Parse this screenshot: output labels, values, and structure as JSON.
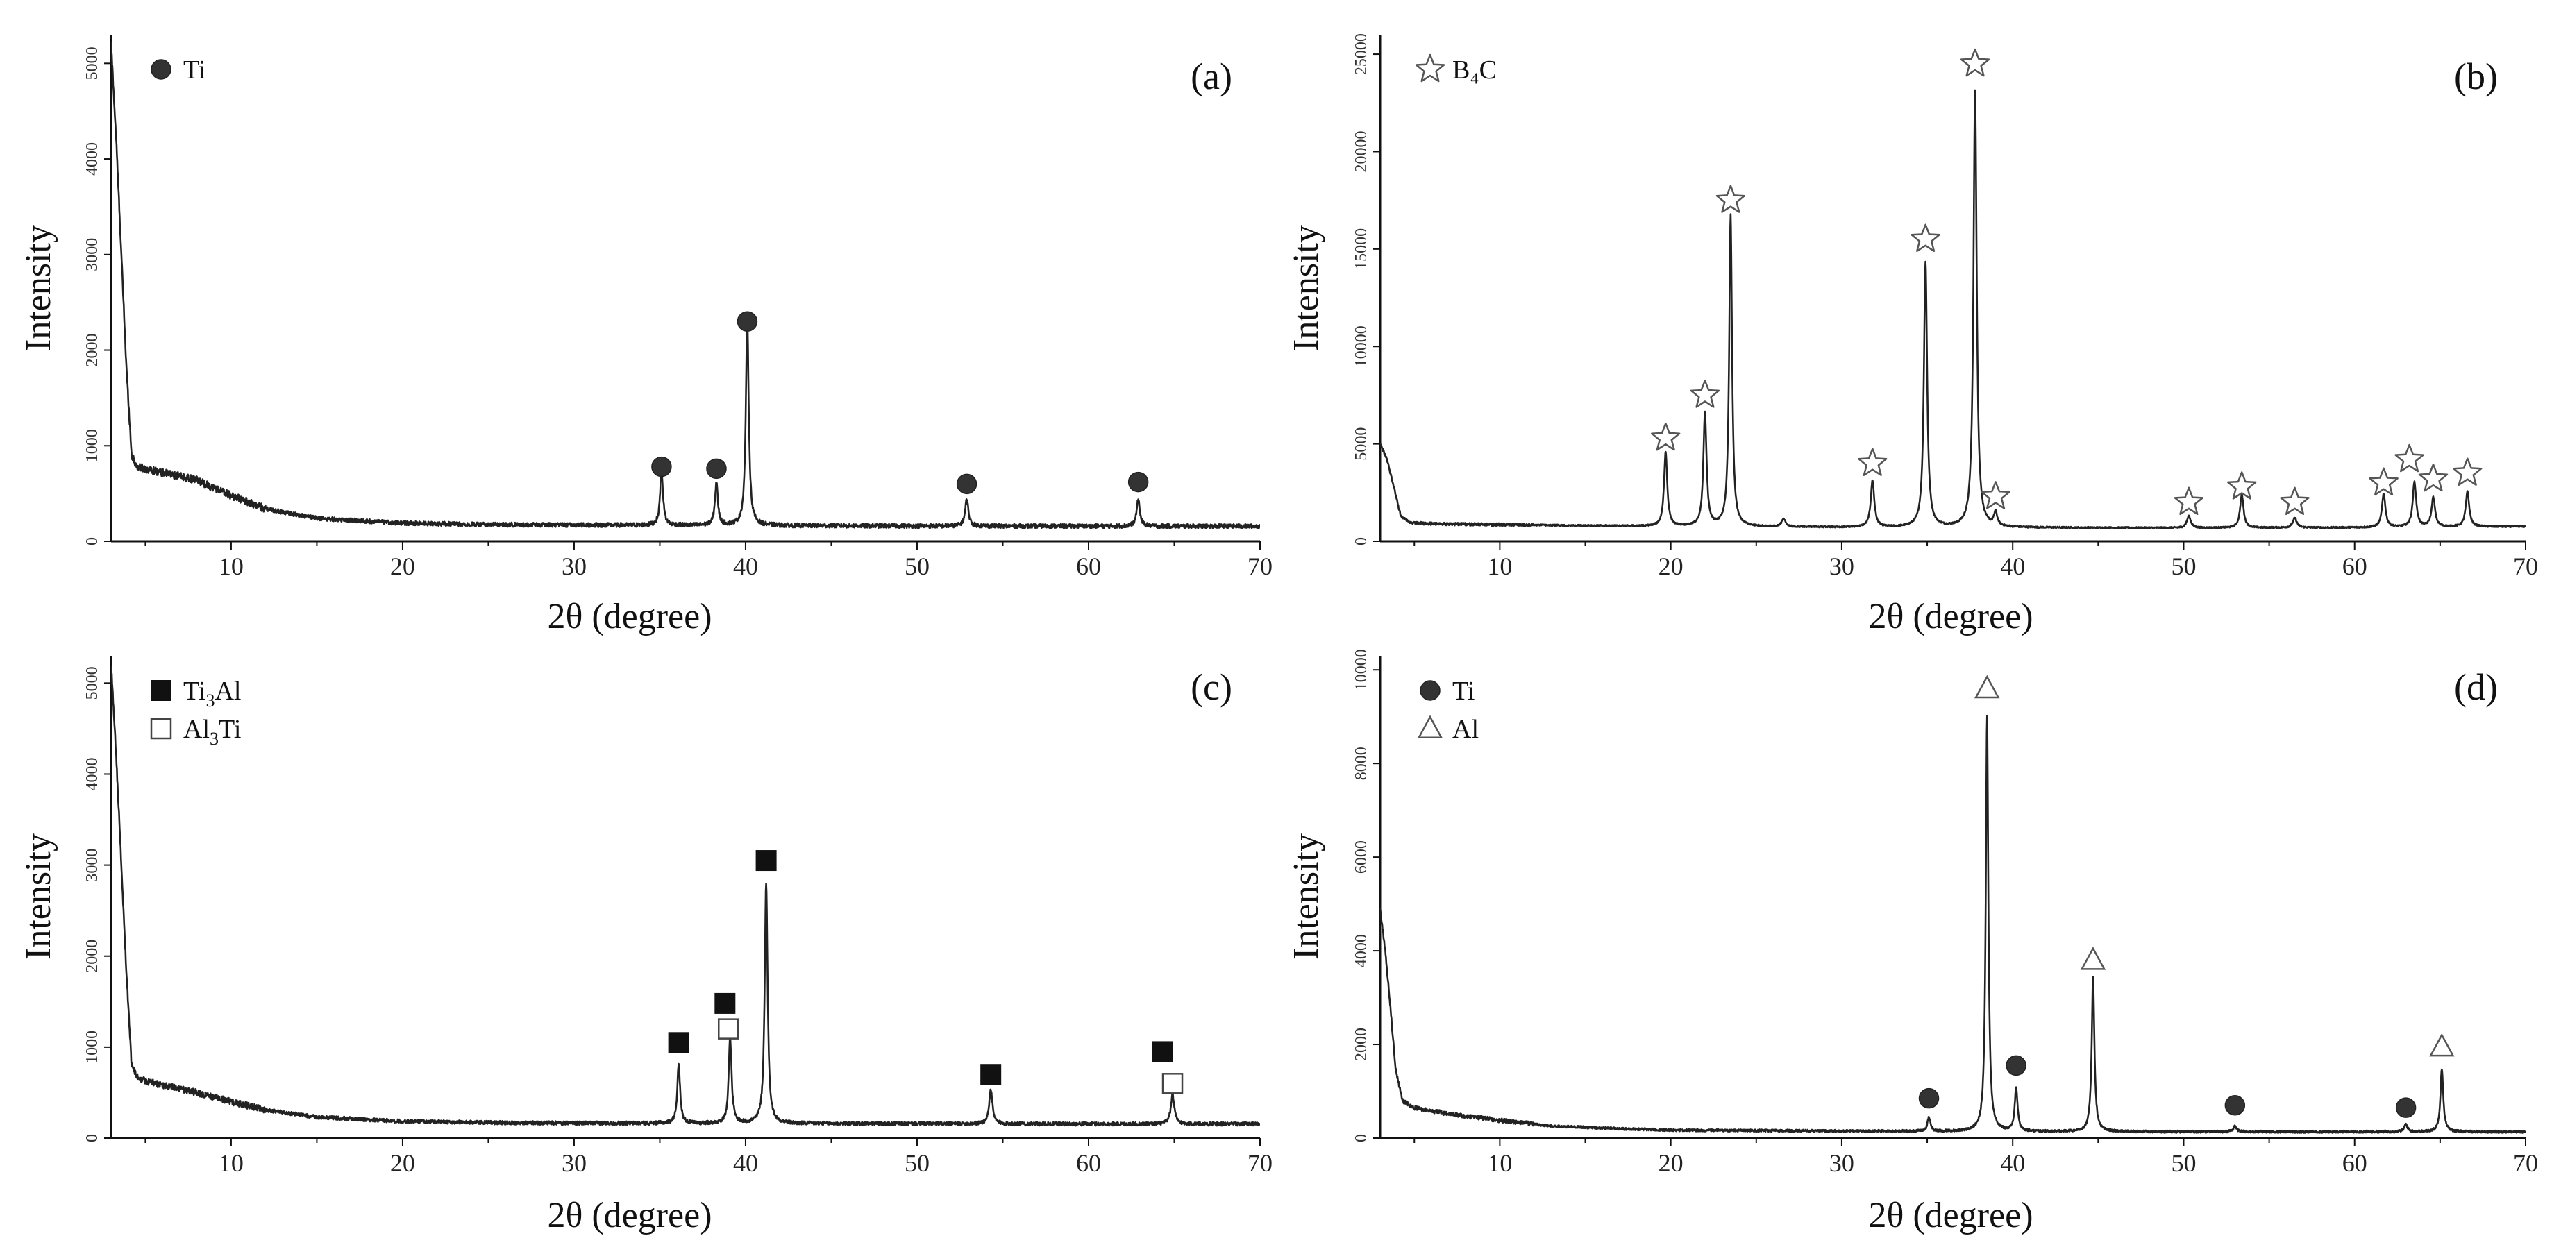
{
  "chart_data": [
    {
      "panel": "(a)",
      "type": "line",
      "xlabel": "2θ (degree)",
      "ylabel": "Intensity",
      "xlim": [
        3,
        70
      ],
      "ylim": [
        0,
        5300
      ],
      "xticks": [
        10,
        20,
        30,
        40,
        50,
        60,
        70
      ],
      "yticks": [
        0,
        1000,
        2000,
        3000,
        4000,
        5000
      ],
      "legend": [
        {
          "marker": "circle-filled",
          "label": "Ti"
        }
      ],
      "baseline": [
        [
          3.0,
          5200
        ],
        [
          3.3,
          4200
        ],
        [
          3.6,
          3000
        ],
        [
          3.9,
          1800
        ],
        [
          4.2,
          900
        ],
        [
          4.5,
          780
        ],
        [
          6,
          720
        ],
        [
          8,
          640
        ],
        [
          10,
          480
        ],
        [
          12,
          340
        ],
        [
          15,
          240
        ],
        [
          20,
          190
        ],
        [
          25,
          175
        ],
        [
          30,
          170
        ],
        [
          40,
          165
        ],
        [
          50,
          160
        ],
        [
          60,
          158
        ],
        [
          70,
          158
        ]
      ],
      "peaks": [
        {
          "x": 35.1,
          "y": 580,
          "w": 0.18
        },
        {
          "x": 38.3,
          "y": 450,
          "w": 0.18
        },
        {
          "x": 40.1,
          "y": 2150,
          "w": 0.18
        },
        {
          "x": 52.9,
          "y": 280,
          "w": 0.2
        },
        {
          "x": 62.9,
          "y": 280,
          "w": 0.2
        }
      ],
      "markers": [
        {
          "x": 35.1,
          "y": 780,
          "symbol": "circle-filled"
        },
        {
          "x": 38.3,
          "y": 760,
          "symbol": "circle-filled"
        },
        {
          "x": 40.1,
          "y": 2300,
          "symbol": "circle-filled"
        },
        {
          "x": 52.9,
          "y": 600,
          "symbol": "circle-filled"
        },
        {
          "x": 62.9,
          "y": 620,
          "symbol": "circle-filled"
        }
      ],
      "noise": 22
    },
    {
      "panel": "(b)",
      "type": "line",
      "xlabel": "2θ (degree)",
      "ylabel": "Intensity",
      "xlim": [
        3,
        70
      ],
      "ylim": [
        0,
        26000
      ],
      "xticks": [
        10,
        20,
        30,
        40,
        50,
        60,
        70
      ],
      "yticks": [
        0,
        5000,
        10000,
        15000,
        20000,
        25000
      ],
      "legend": [
        {
          "marker": "star-open",
          "label": "B₄C"
        }
      ],
      "baseline": [
        [
          3.0,
          5000
        ],
        [
          3.4,
          4200
        ],
        [
          3.8,
          2800
        ],
        [
          4.2,
          1300
        ],
        [
          4.8,
          950
        ],
        [
          6,
          900
        ],
        [
          10,
          850
        ],
        [
          15,
          800
        ],
        [
          20,
          760
        ],
        [
          30,
          720
        ],
        [
          40,
          700
        ],
        [
          50,
          680
        ],
        [
          60,
          700
        ],
        [
          70,
          760
        ]
      ],
      "peaks": [
        {
          "x": 19.7,
          "y": 3800,
          "w": 0.2
        },
        {
          "x": 22.0,
          "y": 5800,
          "w": 0.2
        },
        {
          "x": 23.5,
          "y": 16000,
          "w": 0.18
        },
        {
          "x": 26.6,
          "y": 400,
          "w": 0.25
        },
        {
          "x": 31.8,
          "y": 2400,
          "w": 0.22
        },
        {
          "x": 34.9,
          "y": 13600,
          "w": 0.2
        },
        {
          "x": 37.8,
          "y": 22400,
          "w": 0.2
        },
        {
          "x": 39.0,
          "y": 700,
          "w": 0.2
        },
        {
          "x": 50.3,
          "y": 600,
          "w": 0.25
        },
        {
          "x": 53.4,
          "y": 1700,
          "w": 0.22
        },
        {
          "x": 56.5,
          "y": 500,
          "w": 0.25
        },
        {
          "x": 61.7,
          "y": 1700,
          "w": 0.22
        },
        {
          "x": 63.5,
          "y": 2300,
          "w": 0.22
        },
        {
          "x": 64.6,
          "y": 1500,
          "w": 0.22
        },
        {
          "x": 66.6,
          "y": 1800,
          "w": 0.22
        }
      ],
      "markers": [
        {
          "x": 19.7,
          "y": 5300,
          "symbol": "star-open"
        },
        {
          "x": 22.0,
          "y": 7500,
          "symbol": "star-open"
        },
        {
          "x": 23.5,
          "y": 17500,
          "symbol": "star-open"
        },
        {
          "x": 31.8,
          "y": 4000,
          "symbol": "star-open"
        },
        {
          "x": 34.9,
          "y": 15500,
          "symbol": "star-open"
        },
        {
          "x": 37.8,
          "y": 24500,
          "symbol": "star-open"
        },
        {
          "x": 39.0,
          "y": 2300,
          "symbol": "star-open"
        },
        {
          "x": 50.3,
          "y": 2000,
          "symbol": "star-open"
        },
        {
          "x": 53.4,
          "y": 2800,
          "symbol": "star-open"
        },
        {
          "x": 56.5,
          "y": 2000,
          "symbol": "star-open"
        },
        {
          "x": 61.7,
          "y": 3000,
          "symbol": "star-open"
        },
        {
          "x": 63.2,
          "y": 4200,
          "symbol": "star-open"
        },
        {
          "x": 64.6,
          "y": 3200,
          "symbol": "star-open"
        },
        {
          "x": 66.6,
          "y": 3500,
          "symbol": "star-open"
        }
      ],
      "noise": 40
    },
    {
      "panel": "(c)",
      "type": "line",
      "xlabel": "2θ (degree)",
      "ylabel": "Intensity",
      "xlim": [
        3,
        70
      ],
      "ylim": [
        0,
        5300
      ],
      "xticks": [
        10,
        20,
        30,
        40,
        50,
        60,
        70
      ],
      "yticks": [
        0,
        1000,
        2000,
        3000,
        4000,
        5000
      ],
      "legend": [
        {
          "marker": "square-filled",
          "label": "Ti3Al"
        },
        {
          "marker": "square-open",
          "label": "Al3Ti"
        }
      ],
      "baseline": [
        [
          3.0,
          5200
        ],
        [
          3.3,
          4200
        ],
        [
          3.6,
          3000
        ],
        [
          3.9,
          1800
        ],
        [
          4.2,
          800
        ],
        [
          4.6,
          650
        ],
        [
          6,
          580
        ],
        [
          8,
          500
        ],
        [
          10,
          400
        ],
        [
          12,
          310
        ],
        [
          15,
          230
        ],
        [
          20,
          185
        ],
        [
          25,
          170
        ],
        [
          30,
          165
        ],
        [
          40,
          160
        ],
        [
          50,
          158
        ],
        [
          60,
          155
        ],
        [
          70,
          155
        ]
      ],
      "peaks": [
        {
          "x": 36.1,
          "y": 640,
          "w": 0.18
        },
        {
          "x": 39.1,
          "y": 950,
          "w": 0.18
        },
        {
          "x": 41.2,
          "y": 2650,
          "w": 0.18
        },
        {
          "x": 54.3,
          "y": 380,
          "w": 0.2
        },
        {
          "x": 64.9,
          "y": 320,
          "w": 0.22
        }
      ],
      "markers": [
        {
          "x": 36.1,
          "y": 1050,
          "symbol": "square-filled"
        },
        {
          "x": 38.8,
          "y": 1480,
          "symbol": "square-filled"
        },
        {
          "x": 39.0,
          "y": 1200,
          "symbol": "square-open"
        },
        {
          "x": 41.2,
          "y": 3050,
          "symbol": "square-filled"
        },
        {
          "x": 54.3,
          "y": 700,
          "symbol": "square-filled"
        },
        {
          "x": 64.3,
          "y": 950,
          "symbol": "square-filled"
        },
        {
          "x": 64.9,
          "y": 600,
          "symbol": "square-open"
        }
      ],
      "noise": 20
    },
    {
      "panel": "(d)",
      "type": "line",
      "xlabel": "2θ (degree)",
      "ylabel": "Intensity",
      "xlim": [
        3,
        70
      ],
      "ylim": [
        0,
        10300
      ],
      "xticks": [
        10,
        20,
        30,
        40,
        50,
        60,
        70
      ],
      "yticks": [
        0,
        2000,
        4000,
        6000,
        8000,
        10000
      ],
      "legend": [
        {
          "marker": "circle-filled",
          "label": "Ti"
        },
        {
          "marker": "triangle-open",
          "label": "Al"
        }
      ],
      "baseline": [
        [
          3.0,
          4900
        ],
        [
          3.3,
          4000
        ],
        [
          3.6,
          2800
        ],
        [
          3.9,
          1500
        ],
        [
          4.3,
          800
        ],
        [
          5,
          650
        ],
        [
          7,
          520
        ],
        [
          10,
          380
        ],
        [
          13,
          260
        ],
        [
          17,
          200
        ],
        [
          20,
          170
        ],
        [
          30,
          150
        ],
        [
          40,
          140
        ],
        [
          50,
          135
        ],
        [
          60,
          135
        ],
        [
          70,
          135
        ]
      ],
      "peaks": [
        {
          "x": 35.1,
          "y": 300,
          "w": 0.18
        },
        {
          "x": 38.5,
          "y": 8900,
          "w": 0.16
        },
        {
          "x": 40.2,
          "y": 900,
          "w": 0.18
        },
        {
          "x": 44.7,
          "y": 3300,
          "w": 0.17
        },
        {
          "x": 53.0,
          "y": 120,
          "w": 0.2
        },
        {
          "x": 63.0,
          "y": 160,
          "w": 0.2
        },
        {
          "x": 65.1,
          "y": 1350,
          "w": 0.18
        }
      ],
      "markers": [
        {
          "x": 35.1,
          "y": 850,
          "symbol": "circle-filled"
        },
        {
          "x": 38.5,
          "y": 9600,
          "symbol": "triangle-open"
        },
        {
          "x": 40.2,
          "y": 1550,
          "symbol": "circle-filled"
        },
        {
          "x": 44.7,
          "y": 3800,
          "symbol": "triangle-open"
        },
        {
          "x": 53.0,
          "y": 700,
          "symbol": "circle-filled"
        },
        {
          "x": 63.0,
          "y": 650,
          "symbol": "circle-filled"
        },
        {
          "x": 65.1,
          "y": 1950,
          "symbol": "triangle-open"
        }
      ],
      "noise": 25
    }
  ]
}
